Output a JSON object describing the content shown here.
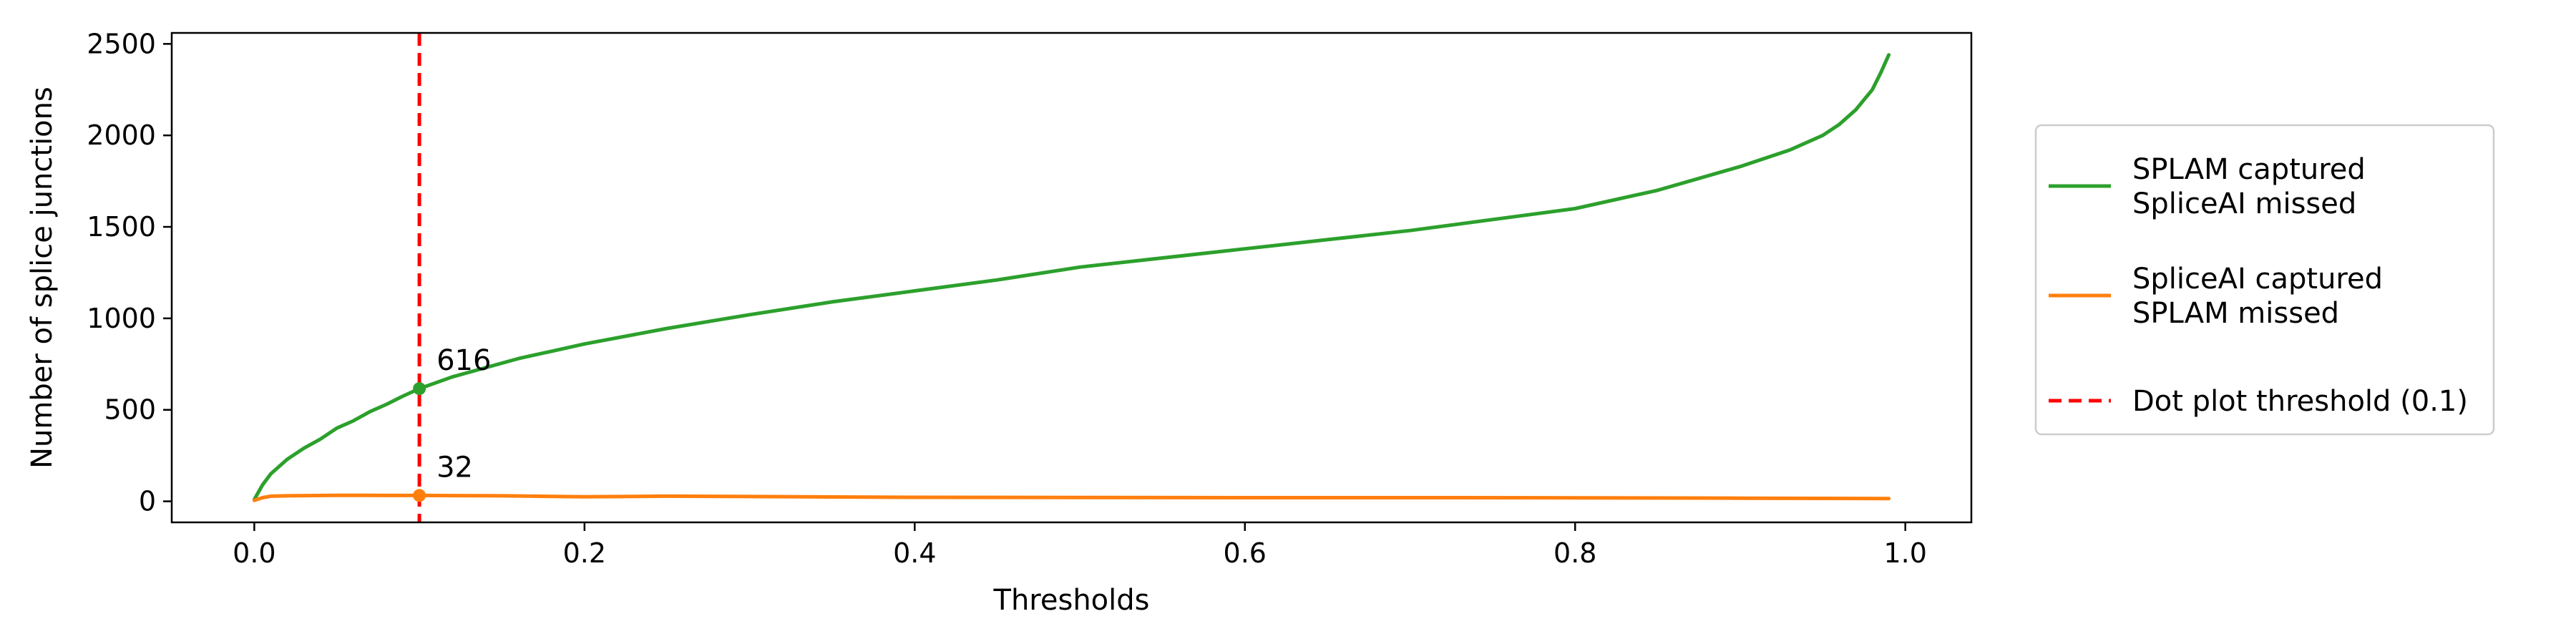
{
  "chart_data": {
    "type": "line",
    "title": "",
    "xlabel": "Thresholds",
    "ylabel": "Number of splice junctions",
    "xlim": [
      -0.05,
      1.04
    ],
    "ylim": [
      -115,
      2560
    ],
    "xticks": [
      0.0,
      0.2,
      0.4,
      0.6,
      0.8,
      1.0
    ],
    "xtick_labels": [
      "0.0",
      "0.2",
      "0.4",
      "0.6",
      "0.8",
      "1.0"
    ],
    "yticks": [
      0,
      500,
      1000,
      1500,
      2000,
      2500
    ],
    "ytick_labels": [
      "0",
      "500",
      "1000",
      "1500",
      "2000",
      "2500"
    ],
    "grid": false,
    "legend_position": "outside-right",
    "series": [
      {
        "name": "SPLAM captured\nSpliceAI missed",
        "color": "#2ca02c",
        "style": "solid",
        "x": [
          0.0,
          0.005,
          0.01,
          0.02,
          0.03,
          0.04,
          0.05,
          0.06,
          0.07,
          0.08,
          0.09,
          0.1,
          0.12,
          0.14,
          0.16,
          0.18,
          0.2,
          0.25,
          0.3,
          0.35,
          0.4,
          0.45,
          0.5,
          0.55,
          0.6,
          0.65,
          0.7,
          0.75,
          0.8,
          0.85,
          0.9,
          0.93,
          0.95,
          0.96,
          0.97,
          0.98,
          0.985,
          0.99
        ],
        "y": [
          10,
          90,
          150,
          230,
          290,
          340,
          400,
          440,
          490,
          530,
          575,
          616,
          680,
          730,
          780,
          820,
          860,
          945,
          1020,
          1090,
          1150,
          1210,
          1280,
          1330,
          1380,
          1430,
          1480,
          1540,
          1600,
          1700,
          1830,
          1920,
          2000,
          2060,
          2140,
          2250,
          2340,
          2440
        ]
      },
      {
        "name": "SpliceAI captured\nSPLAM missed",
        "color": "#ff7f0e",
        "style": "solid",
        "x": [
          0.0,
          0.005,
          0.01,
          0.02,
          0.05,
          0.08,
          0.1,
          0.15,
          0.2,
          0.25,
          0.3,
          0.35,
          0.4,
          0.5,
          0.6,
          0.7,
          0.8,
          0.9,
          0.95,
          0.99
        ],
        "y": [
          5,
          20,
          28,
          30,
          33,
          32,
          32,
          30,
          25,
          28,
          26,
          24,
          22,
          21,
          20,
          20,
          19,
          17,
          16,
          15
        ]
      }
    ],
    "threshold_line": {
      "name": "Dot plot threshold (0.1)",
      "x": 0.1,
      "color": "#ff0000",
      "style": "dashed"
    },
    "annotations": [
      {
        "text": "616",
        "x": 0.1,
        "y": 616,
        "series": 0
      },
      {
        "text": "32",
        "x": 0.1,
        "y": 32,
        "series": 1
      }
    ]
  }
}
